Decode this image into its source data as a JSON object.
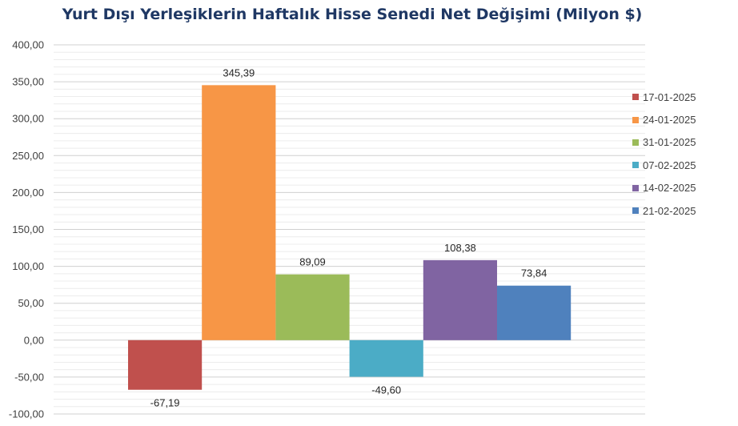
{
  "chart_data": {
    "type": "bar",
    "title": "Yurt Dışı Yerleşiklerin Haftalık Hisse Senedi Net Değişimi (Milyon $)",
    "ylim": [
      -100,
      400
    ],
    "ytick_step": 50,
    "ytick_labels": [
      "400,00",
      "350,00",
      "300,00",
      "250,00",
      "200,00",
      "150,00",
      "100,00",
      "50,00",
      "0,00",
      "-50,00",
      "-100,00"
    ],
    "minor_gridlines": true,
    "legend_position": "right",
    "series": [
      {
        "name": "17-01-2025",
        "value": -67.19,
        "label": "-67,19",
        "color": "#c0504d"
      },
      {
        "name": "24-01-2025",
        "value": 345.39,
        "label": "345,39",
        "color": "#f79646"
      },
      {
        "name": "31-01-2025",
        "value": 89.09,
        "label": "89,09",
        "color": "#9bbb59"
      },
      {
        "name": "07-02-2025",
        "value": -49.6,
        "label": "-49,60",
        "color": "#4bacc6"
      },
      {
        "name": "14-02-2025",
        "value": 108.38,
        "label": "108,38",
        "color": "#8064a2"
      },
      {
        "name": "21-02-2025",
        "value": 73.84,
        "label": "73,84",
        "color": "#4f81bd"
      }
    ]
  }
}
